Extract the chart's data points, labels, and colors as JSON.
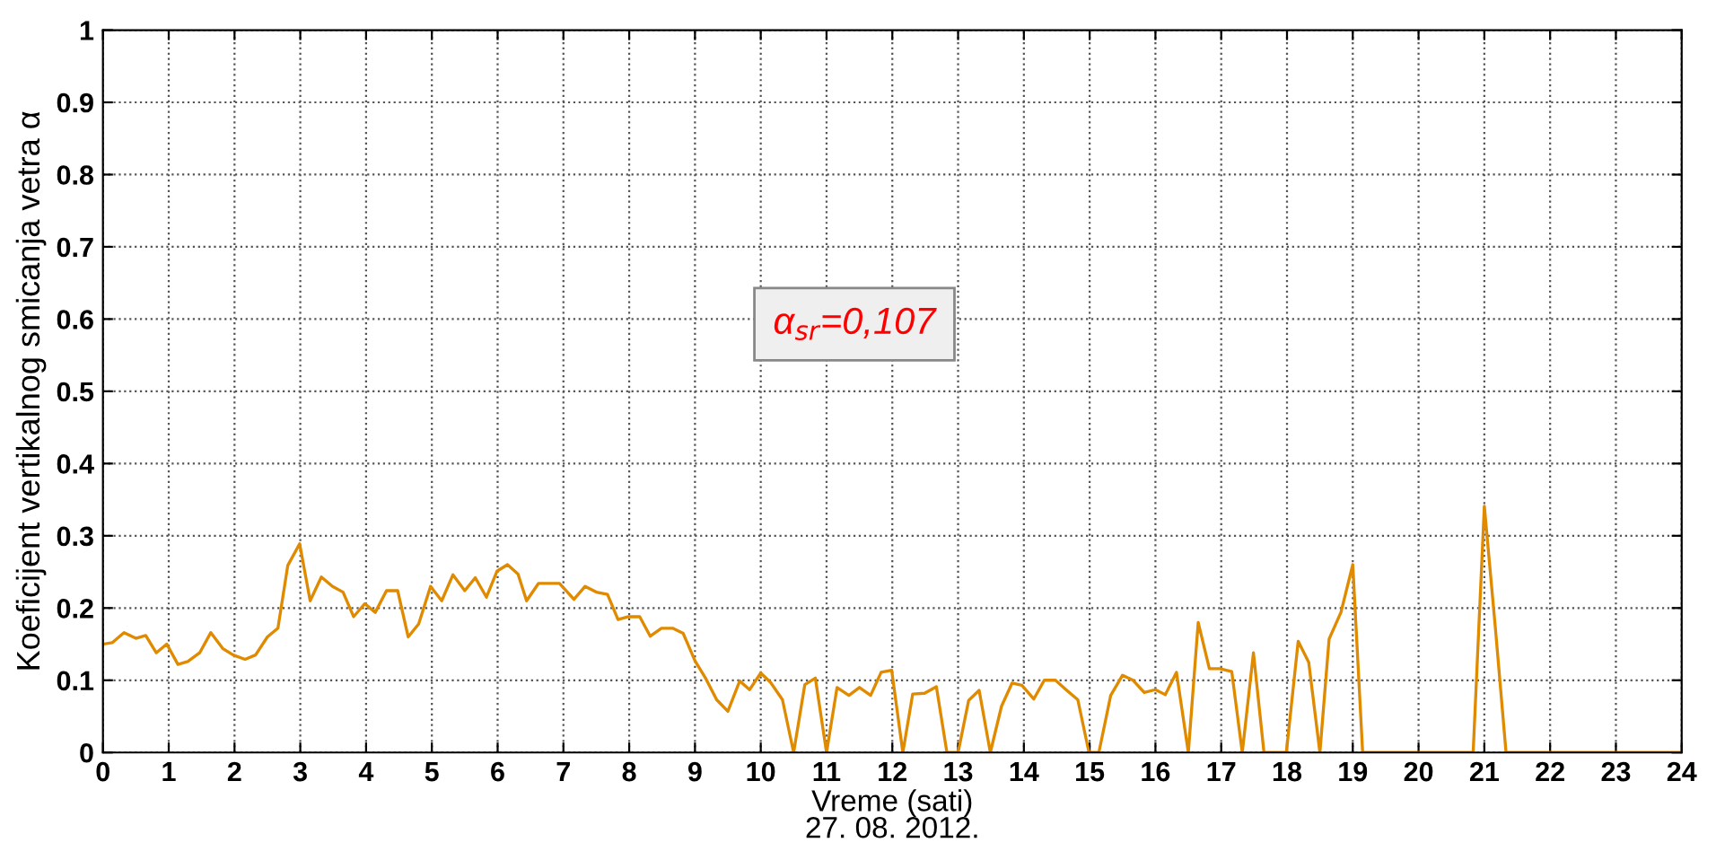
{
  "chart_data": {
    "type": "line",
    "xlabel": "Vreme (sati)\n27. 08. 2012.",
    "ylabel": "Koeficijent vertikalnog smicanja vetra α",
    "annotations": [
      "α$_{sr}$=0,107"
    ],
    "series": [
      {
        "color": "#e08a00",
        "x": [
          0.0,
          0.14,
          0.32,
          0.5,
          0.65,
          0.81,
          0.97,
          1.14,
          1.29,
          1.47,
          1.64,
          1.82,
          1.98,
          2.16,
          2.32,
          2.5,
          2.66,
          2.81,
          2.99,
          3.15,
          3.32,
          3.49,
          3.65,
          3.81,
          3.98,
          4.14,
          4.31,
          4.48,
          4.64,
          4.8,
          4.98,
          5.15,
          5.32,
          5.5,
          5.66,
          5.83,
          5.99,
          6.15,
          6.31,
          6.44,
          6.62,
          6.78,
          6.94,
          7.16,
          7.33,
          7.5,
          7.67,
          7.83,
          7.99,
          8.16,
          8.32,
          8.49,
          8.66,
          8.82,
          9.0,
          9.16,
          9.33,
          9.5,
          9.68,
          9.83,
          10.0,
          10.15,
          10.33,
          10.5,
          10.67,
          10.83,
          11.0,
          11.16,
          11.34,
          11.5,
          11.67,
          11.83,
          11.99,
          12.16,
          12.31,
          12.49,
          12.67,
          12.83,
          13.0,
          13.16,
          13.32,
          13.49,
          13.66,
          13.82,
          13.97,
          14.15,
          14.31,
          14.48,
          14.64,
          14.82,
          14.99,
          15.14,
          15.32,
          15.5,
          15.66,
          15.83,
          16.0,
          16.15,
          16.32,
          16.5,
          16.65,
          16.82,
          16.98,
          17.16,
          17.32,
          17.49,
          17.65,
          17.99,
          18.17,
          18.33,
          18.5,
          18.64,
          18.82,
          19.0,
          19.15,
          20.83,
          21.0,
          21.17,
          21.33,
          24.0
        ],
        "values": [
          0.15,
          0.152,
          0.166,
          0.158,
          0.162,
          0.138,
          0.15,
          0.122,
          0.126,
          0.138,
          0.166,
          0.144,
          0.135,
          0.129,
          0.135,
          0.16,
          0.172,
          0.259,
          0.289,
          0.21,
          0.243,
          0.23,
          0.222,
          0.188,
          0.206,
          0.194,
          0.224,
          0.224,
          0.16,
          0.178,
          0.23,
          0.21,
          0.246,
          0.224,
          0.242,
          0.215,
          0.251,
          0.26,
          0.247,
          0.21,
          0.234,
          0.234,
          0.234,
          0.212,
          0.23,
          0.222,
          0.219,
          0.184,
          0.188,
          0.188,
          0.161,
          0.172,
          0.172,
          0.165,
          0.127,
          0.103,
          0.073,
          0.057,
          0.099,
          0.087,
          0.11,
          0.097,
          0.073,
          0,
          0.094,
          0.103,
          0,
          0.09,
          0.079,
          0.09,
          0.079,
          0.111,
          0.114,
          0,
          0.081,
          0.082,
          0.091,
          0,
          0,
          0.072,
          0.086,
          0,
          0.064,
          0.096,
          0.093,
          0.074,
          0.1,
          0.1,
          0.087,
          0.073,
          0,
          0,
          0.079,
          0.107,
          0.1,
          0.083,
          0.087,
          0.08,
          0.111,
          0,
          0.18,
          0.116,
          0.116,
          0.112,
          0,
          0.138,
          0,
          0,
          0.154,
          0.125,
          0,
          0.157,
          0.194,
          0.26,
          0,
          0,
          0.341,
          0.17,
          0,
          0
        ]
      }
    ],
    "xlim": [
      0,
      24
    ],
    "xticks": [
      0,
      1,
      2,
      3,
      4,
      5,
      6,
      7,
      8,
      9,
      10,
      11,
      12,
      13,
      14,
      15,
      16,
      17,
      18,
      19,
      20,
      21,
      22,
      23,
      24
    ],
    "ylim": [
      0,
      1
    ],
    "yticks": [
      0,
      0.1,
      0.2,
      0.3,
      0.4,
      0.5,
      0.6,
      0.7,
      0.8,
      0.9,
      1
    ],
    "grid": true,
    "marker": "none",
    "line_style": "solid"
  }
}
